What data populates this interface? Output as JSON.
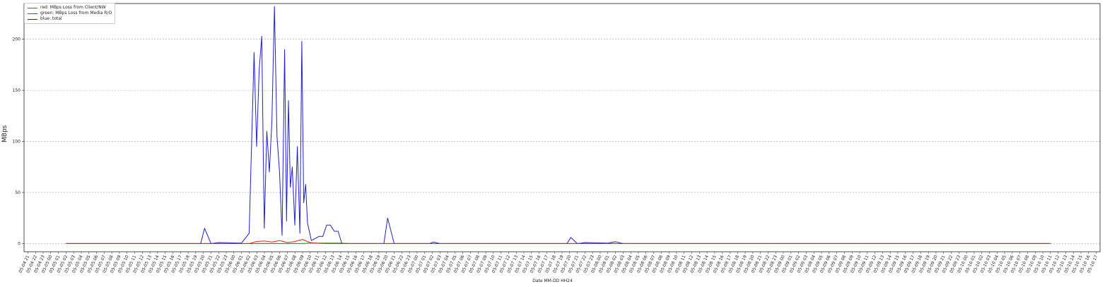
{
  "chart_data": {
    "type": "line",
    "title": "",
    "xlabel": "Date MM-DD HH24",
    "ylabel": "MBps",
    "ylim": [
      -8,
      235
    ],
    "yticks": [
      0,
      50,
      100,
      150,
      200
    ],
    "grid": "horizontal-dashed",
    "legend_position": "top-left",
    "tick_start": "05-04 21",
    "tick_count": 141,
    "x_first_point": "05-05 02",
    "x_last_point": "05-10 11",
    "series": [
      {
        "name": "red: MBps Loss from Client/NW",
        "color": "#e8261c",
        "points": [
          [
            "05-05 02",
            0
          ],
          [
            "05-06 02",
            0
          ],
          [
            "05-06 03",
            2
          ],
          [
            "05-06 04",
            2.5
          ],
          [
            "05-06 05",
            1.5
          ],
          [
            "05-06 06",
            3
          ],
          [
            "05-06 07",
            1
          ],
          [
            "05-06 08",
            2
          ],
          [
            "05-06 09",
            4
          ],
          [
            "05-06 10",
            1
          ],
          [
            "05-06 11",
            0.3
          ],
          [
            "05-06 12",
            0
          ],
          [
            "05-10 11",
            0
          ]
        ]
      },
      {
        "name": "green: MBps Loss from Media R/O",
        "color": "#1e7d1e",
        "points": [
          [
            "05-05 02",
            0
          ],
          [
            "05-06 09",
            0
          ],
          [
            "05-06 10",
            0.4
          ],
          [
            "05-06 14",
            0.4
          ],
          [
            "05-06 15",
            0
          ],
          [
            "05-10 11",
            0
          ]
        ]
      },
      {
        "name": "blue: total",
        "color": "#1f1fd0",
        "points": [
          [
            "05-05 02",
            0
          ],
          [
            "05-05 20",
            0
          ],
          [
            "05-05 20",
            15
          ],
          [
            "05-05 21",
            0
          ],
          [
            "05-05 22",
            1
          ],
          [
            "05-06 01",
            0.5
          ],
          [
            "05-06 02",
            10
          ],
          [
            "05-06 03",
            187
          ],
          [
            "05-06 03",
            95
          ],
          [
            "05-06 03",
            170
          ],
          [
            "05-06 04",
            203
          ],
          [
            "05-06 04",
            15
          ],
          [
            "05-06 04",
            110
          ],
          [
            "05-06 05",
            70
          ],
          [
            "05-06 05",
            120
          ],
          [
            "05-06 05",
            232
          ],
          [
            "05-06 06",
            105
          ],
          [
            "05-06 06",
            70
          ],
          [
            "05-06 06",
            8
          ],
          [
            "05-06 07",
            190
          ],
          [
            "05-06 07",
            22
          ],
          [
            "05-06 07",
            140
          ],
          [
            "05-06 07",
            55
          ],
          [
            "05-06 08",
            75
          ],
          [
            "05-06 08",
            18
          ],
          [
            "05-06 08",
            95
          ],
          [
            "05-06 09",
            10
          ],
          [
            "05-06 09",
            198
          ],
          [
            "05-06 09",
            40
          ],
          [
            "05-06 09",
            58
          ],
          [
            "05-06 10",
            20
          ],
          [
            "05-06 10",
            3
          ],
          [
            "05-06 11",
            5
          ],
          [
            "05-06 11",
            7
          ],
          [
            "05-06 12",
            7
          ],
          [
            "05-06 12",
            18
          ],
          [
            "05-06 13",
            18
          ],
          [
            "05-06 13",
            12
          ],
          [
            "05-06 14",
            12
          ],
          [
            "05-06 14",
            0
          ],
          [
            "05-06 20",
            0
          ],
          [
            "05-06 20",
            25
          ],
          [
            "05-06 21",
            0
          ],
          [
            "05-07 02",
            0
          ],
          [
            "05-07 02",
            1.5
          ],
          [
            "05-07 03",
            0
          ],
          [
            "05-07 20",
            0
          ],
          [
            "05-07 20",
            6
          ],
          [
            "05-07 21",
            0
          ],
          [
            "05-07 22",
            1
          ],
          [
            "05-08 01",
            0.5
          ],
          [
            "05-08 02",
            1.8
          ],
          [
            "05-08 03",
            0
          ],
          [
            "05-10 11",
            0
          ]
        ]
      }
    ]
  }
}
